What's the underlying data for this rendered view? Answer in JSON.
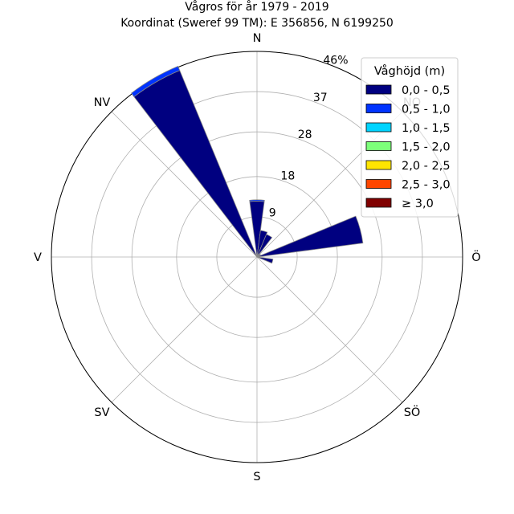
{
  "chart_data": {
    "type": "windrose",
    "title": "Vågros för år 1979 - 2019",
    "subtitle": "Koordinat (Sweref 99 TM): E 356856, N 6199250",
    "directions": [
      "N",
      "NO",
      "Ö",
      "SÖ",
      "S",
      "SV",
      "V",
      "NV"
    ],
    "radial_ticks": [
      "9",
      "18",
      "28",
      "37",
      "46%"
    ],
    "radial_max": 46,
    "legend": {
      "title": "Våghöjd (m)",
      "placement": "top-right",
      "entries": [
        {
          "label": "0,0 - 0,5",
          "color": "#000080"
        },
        {
          "label": "0,5 - 1,0",
          "color": "#0033ff"
        },
        {
          "label": "1,0 - 1,5",
          "color": "#00d4ff"
        },
        {
          "label": "1,5 - 2,0",
          "color": "#7dff7a"
        },
        {
          "label": "2,0 - 2,5",
          "color": "#ffe500"
        },
        {
          "label": "2,5 - 3,0",
          "color": "#ff4600"
        },
        {
          "label": "≥ 3,0",
          "color": "#800000"
        }
      ]
    },
    "bin_width_deg": 15,
    "sectors": [
      {
        "direction_deg": 0,
        "values": [
          12.5,
          0.3,
          0,
          0,
          0,
          0,
          0
        ]
      },
      {
        "direction_deg": 15,
        "values": [
          6.0,
          0,
          0,
          0,
          0,
          0,
          0
        ]
      },
      {
        "direction_deg": 30,
        "values": [
          5.5,
          0,
          0,
          0,
          0,
          0,
          0
        ]
      },
      {
        "direction_deg": 45,
        "values": [
          0.7,
          0,
          0,
          0,
          0,
          0,
          0
        ]
      },
      {
        "direction_deg": 60,
        "values": [
          0.9,
          0,
          0,
          0,
          0,
          0,
          0
        ]
      },
      {
        "direction_deg": 75,
        "values": [
          23.9,
          0,
          0,
          0,
          0,
          0,
          0
        ]
      },
      {
        "direction_deg": 90,
        "values": [
          0.6,
          0,
          0,
          0,
          0,
          0,
          0
        ]
      },
      {
        "direction_deg": 105,
        "values": [
          3.6,
          0,
          0,
          0,
          0,
          0,
          0
        ]
      },
      {
        "direction_deg": 330,
        "values": [
          45.2,
          1.0,
          0,
          0,
          0,
          0,
          0
        ]
      }
    ],
    "grid": true
  }
}
